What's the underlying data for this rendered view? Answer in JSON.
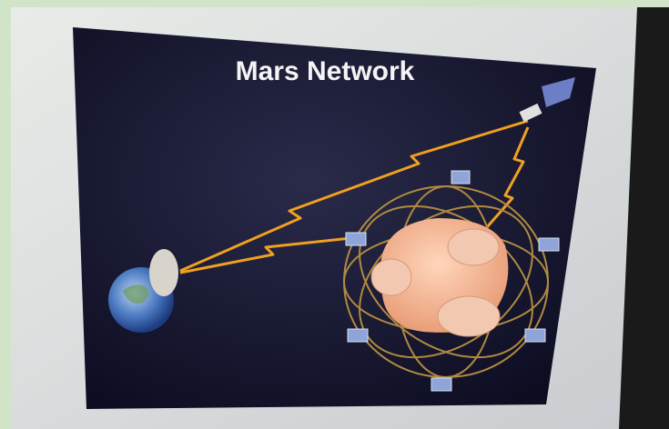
{
  "slide": {
    "title": "Mars Network"
  }
}
